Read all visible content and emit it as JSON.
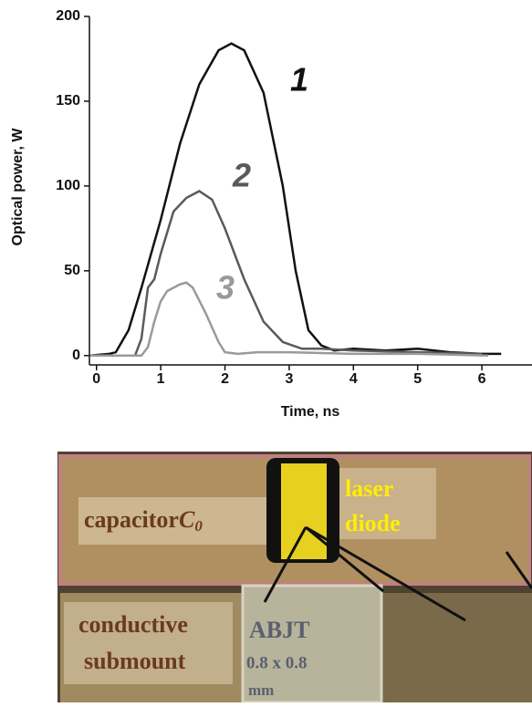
{
  "chart_data": {
    "type": "line",
    "xlabel": "Time, ns",
    "ylabel": "Optical power, W",
    "xlim": [
      -0.11,
      6.78
    ],
    "ylim": [
      -5.5,
      200
    ],
    "xticks": [
      0,
      1,
      2,
      3,
      4,
      5,
      6
    ],
    "yticks": [
      0,
      50,
      100,
      150,
      200
    ],
    "series": [
      {
        "name": "1",
        "color": "#111111",
        "x": [
          -0.1,
          0.2,
          0.3,
          0.5,
          0.7,
          1.0,
          1.3,
          1.6,
          1.9,
          2.1,
          2.3,
          2.6,
          2.9,
          3.1,
          3.3,
          3.5,
          3.7,
          4.0,
          4.5,
          5.0,
          5.5,
          6.0,
          6.3
        ],
        "values": [
          0,
          1,
          2,
          15,
          40,
          80,
          125,
          160,
          180,
          184,
          180,
          155,
          100,
          50,
          15,
          6,
          3,
          4,
          3,
          4,
          2,
          1,
          1
        ]
      },
      {
        "name": "2",
        "color": "#5a5a5a",
        "x": [
          -0.1,
          0.6,
          0.7,
          0.8,
          0.9,
          1.0,
          1.2,
          1.4,
          1.6,
          1.8,
          2.0,
          2.3,
          2.6,
          2.9,
          3.2,
          3.5,
          4.0,
          5.0,
          6.0
        ],
        "values": [
          0,
          0,
          10,
          40,
          45,
          60,
          85,
          93,
          97,
          92,
          75,
          45,
          20,
          8,
          4,
          4,
          3,
          2,
          1
        ]
      },
      {
        "name": "3",
        "color": "#9a9a9a",
        "x": [
          -0.1,
          0.7,
          0.8,
          0.9,
          1.0,
          1.1,
          1.3,
          1.4,
          1.5,
          1.7,
          1.9,
          2.0,
          2.2,
          2.5,
          3.0,
          4.0,
          5.0,
          6.1
        ],
        "values": [
          0,
          0,
          5,
          20,
          32,
          38,
          42,
          43,
          40,
          25,
          8,
          2,
          1,
          2,
          2,
          1,
          1,
          0
        ]
      }
    ]
  },
  "photo": {
    "capacitor": {
      "text": "capacitor",
      "symbol": "C",
      "subscript": "0"
    },
    "laser_diode": [
      "laser",
      "diode"
    ],
    "submount": [
      "conductive",
      "submount"
    ],
    "abjt": {
      "name": "ABJT",
      "size": "0.8 x 0.8",
      "unit": "mm"
    }
  }
}
